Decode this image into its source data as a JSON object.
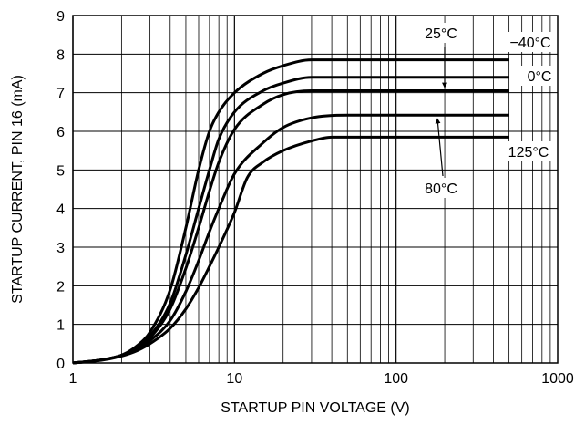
{
  "chart_data": {
    "type": "line",
    "x_scale": "log",
    "xlim": [
      1,
      1000
    ],
    "ylim": [
      0,
      9
    ],
    "xlabel": "STARTUP PIN VOLTAGE (V)",
    "ylabel": "STARTUP CURRENT, PIN 16 (mA)",
    "x_ticks": [
      "1",
      "10",
      "100",
      "1000"
    ],
    "y_ticks": [
      "0",
      "1",
      "2",
      "3",
      "4",
      "5",
      "6",
      "7",
      "8",
      "9"
    ],
    "grid": true,
    "series": [
      {
        "name": "−40°C",
        "points": [
          [
            1,
            0
          ],
          [
            1.5,
            0.08
          ],
          [
            2,
            0.2
          ],
          [
            2.5,
            0.45
          ],
          [
            3,
            0.8
          ],
          [
            4,
            1.9
          ],
          [
            5,
            3.5
          ],
          [
            6,
            5.0
          ],
          [
            7,
            6.0
          ],
          [
            8,
            6.5
          ],
          [
            10,
            7.0
          ],
          [
            15,
            7.5
          ],
          [
            20,
            7.7
          ],
          [
            30,
            7.85
          ],
          [
            50,
            7.85
          ],
          [
            100,
            7.85
          ],
          [
            200,
            7.85
          ],
          [
            500,
            7.85
          ]
        ]
      },
      {
        "name": "0°C",
        "points": [
          [
            1,
            0
          ],
          [
            1.5,
            0.08
          ],
          [
            2,
            0.2
          ],
          [
            2.5,
            0.42
          ],
          [
            3,
            0.7
          ],
          [
            4,
            1.55
          ],
          [
            5,
            2.8
          ],
          [
            6,
            4.0
          ],
          [
            7,
            5.0
          ],
          [
            8,
            5.8
          ],
          [
            10,
            6.5
          ],
          [
            15,
            7.05
          ],
          [
            20,
            7.25
          ],
          [
            30,
            7.4
          ],
          [
            50,
            7.4
          ],
          [
            100,
            7.4
          ],
          [
            200,
            7.4
          ],
          [
            500,
            7.4
          ]
        ]
      },
      {
        "name": "25°C",
        "points": [
          [
            1,
            0
          ],
          [
            1.5,
            0.08
          ],
          [
            2,
            0.2
          ],
          [
            2.5,
            0.4
          ],
          [
            3,
            0.65
          ],
          [
            4,
            1.4
          ],
          [
            5,
            2.45
          ],
          [
            6,
            3.5
          ],
          [
            7,
            4.45
          ],
          [
            8,
            5.2
          ],
          [
            10,
            6.05
          ],
          [
            15,
            6.7
          ],
          [
            20,
            6.95
          ],
          [
            30,
            7.05
          ],
          [
            50,
            7.05
          ],
          [
            100,
            7.05
          ],
          [
            200,
            7.05
          ],
          [
            500,
            7.05
          ]
        ]
      },
      {
        "name": "80°C",
        "points": [
          [
            1,
            0
          ],
          [
            1.5,
            0.08
          ],
          [
            2,
            0.2
          ],
          [
            2.5,
            0.37
          ],
          [
            3,
            0.58
          ],
          [
            4,
            1.1
          ],
          [
            5,
            1.85
          ],
          [
            6,
            2.65
          ],
          [
            7,
            3.4
          ],
          [
            8,
            4.0
          ],
          [
            10,
            4.9
          ],
          [
            15,
            5.7
          ],
          [
            20,
            6.1
          ],
          [
            30,
            6.35
          ],
          [
            50,
            6.42
          ],
          [
            100,
            6.42
          ],
          [
            200,
            6.42
          ],
          [
            500,
            6.42
          ]
        ]
      },
      {
        "name": "125°C",
        "points": [
          [
            1,
            0
          ],
          [
            1.5,
            0.07
          ],
          [
            2,
            0.18
          ],
          [
            2.5,
            0.32
          ],
          [
            3,
            0.5
          ],
          [
            4,
            0.9
          ],
          [
            5,
            1.4
          ],
          [
            6,
            1.95
          ],
          [
            7,
            2.5
          ],
          [
            8,
            3.0
          ],
          [
            10,
            3.9
          ],
          [
            12,
            4.8
          ],
          [
            15,
            5.2
          ],
          [
            20,
            5.5
          ],
          [
            30,
            5.75
          ],
          [
            40,
            5.85
          ],
          [
            100,
            5.85
          ],
          [
            200,
            5.85
          ],
          [
            500,
            5.85
          ]
        ]
      }
    ]
  }
}
